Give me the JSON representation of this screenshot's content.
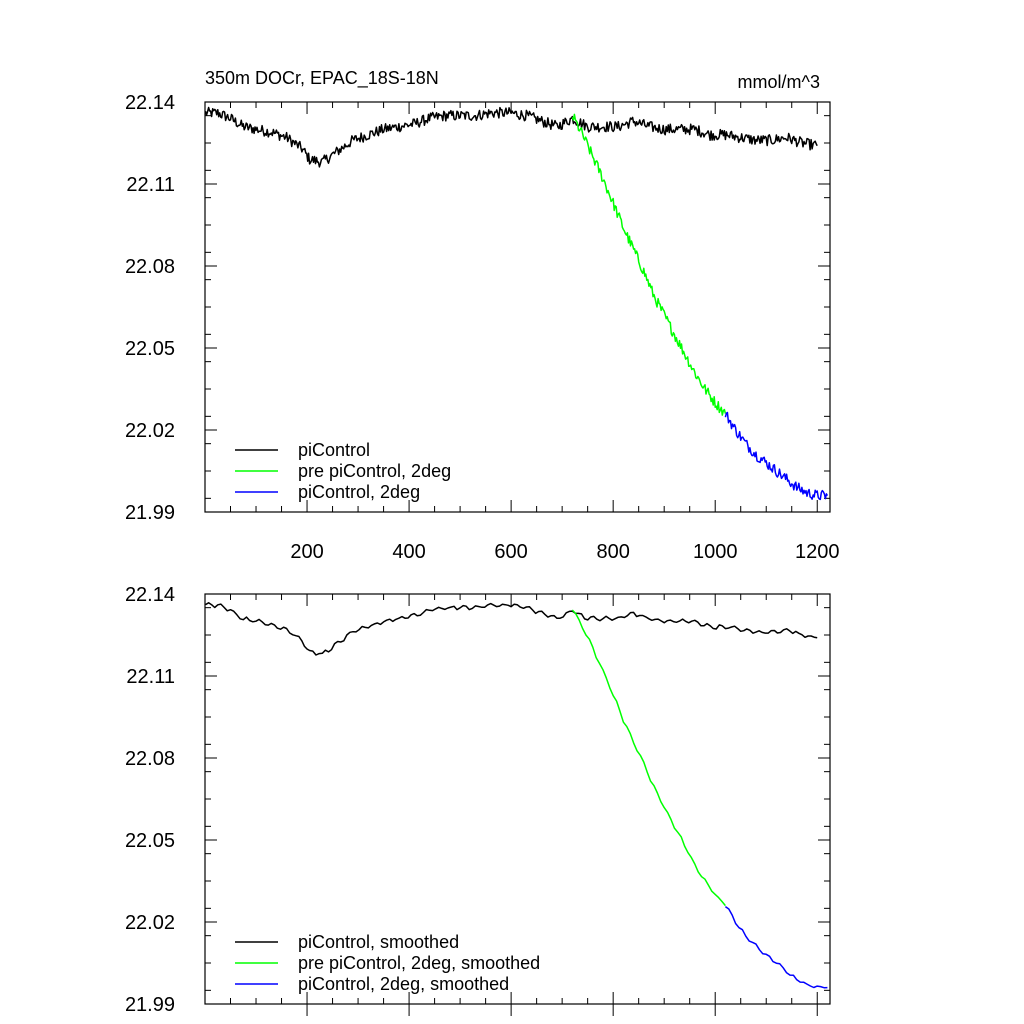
{
  "chart_data": [
    {
      "type": "line",
      "title_left": "350m DOCr, EPAC_18S-18N",
      "title_right": "mmol/m^3",
      "xlim": [
        0,
        1225
      ],
      "ylim": [
        21.99,
        22.14
      ],
      "xticks": [
        200,
        400,
        600,
        800,
        1000,
        1200
      ],
      "yticks": [
        22.14,
        22.11,
        22.08,
        22.05,
        22.02,
        21.99
      ],
      "ytick_labels": [
        "22.14",
        "22.11",
        "22.08",
        "22.05",
        "22.02",
        "21.99"
      ],
      "xtick_labels": [
        "200",
        "400",
        "600",
        "800",
        "1000",
        "1200"
      ],
      "show_x_labels": true,
      "legend_position": "bottom-left",
      "smoothed": false,
      "series": [
        {
          "name": "piControl",
          "color": "#000000",
          "x": [
            1,
            25,
            50,
            75,
            100,
            130,
            160,
            190,
            205,
            230,
            260,
            290,
            320,
            350,
            380,
            410,
            440,
            470,
            500,
            530,
            560,
            600,
            630,
            660,
            690,
            720,
            750,
            780,
            810,
            840,
            870,
            900,
            930,
            960,
            990,
            1020,
            1050,
            1080,
            1110,
            1140,
            1170,
            1200
          ],
          "y": [
            22.136,
            22.136,
            22.134,
            22.131,
            22.13,
            22.129,
            22.127,
            22.123,
            22.119,
            22.118,
            22.122,
            22.126,
            22.128,
            22.13,
            22.131,
            22.132,
            22.134,
            22.135,
            22.135,
            22.135,
            22.136,
            22.136,
            22.135,
            22.133,
            22.131,
            22.134,
            22.131,
            22.131,
            22.131,
            22.133,
            22.131,
            22.13,
            22.13,
            22.13,
            22.128,
            22.128,
            22.127,
            22.126,
            22.126,
            22.127,
            22.125,
            22.124
          ]
        },
        {
          "name": "pre piControl, 2deg",
          "color": "#00ff00",
          "x": [
            720,
            740,
            760,
            780,
            800,
            820,
            840,
            860,
            880,
            900,
            920,
            940,
            960,
            980,
            1000,
            1020
          ],
          "y": [
            22.135,
            22.128,
            22.12,
            22.112,
            22.103,
            22.094,
            22.086,
            22.078,
            22.069,
            22.062,
            22.055,
            22.048,
            22.041,
            22.035,
            22.03,
            22.026
          ]
        },
        {
          "name": "piControl, 2deg",
          "color": "#0000ff",
          "x": [
            1020,
            1040,
            1060,
            1080,
            1100,
            1120,
            1140,
            1160,
            1180,
            1200,
            1220
          ],
          "y": [
            22.026,
            22.02,
            22.015,
            22.011,
            22.008,
            22.005,
            22.002,
            21.999,
            21.997,
            21.996,
            21.996
          ]
        }
      ]
    },
    {
      "type": "line",
      "xlim": [
        0,
        1225
      ],
      "ylim": [
        21.99,
        22.14
      ],
      "xticks": [
        200,
        400,
        600,
        800,
        1000,
        1200
      ],
      "yticks": [
        22.14,
        22.11,
        22.08,
        22.05,
        22.02,
        21.99
      ],
      "ytick_labels": [
        "22.14",
        "22.11",
        "22.08",
        "22.05",
        "22.02",
        "21.99"
      ],
      "show_x_labels": false,
      "legend_position": "bottom-left",
      "smoothed": true,
      "series": [
        {
          "name": "piControl, smoothed",
          "color": "#000000",
          "x": [
            1,
            25,
            50,
            75,
            100,
            130,
            160,
            190,
            205,
            230,
            260,
            290,
            320,
            350,
            380,
            410,
            440,
            470,
            500,
            530,
            560,
            600,
            630,
            660,
            690,
            720,
            750,
            780,
            810,
            840,
            870,
            900,
            930,
            960,
            990,
            1020,
            1050,
            1080,
            1110,
            1140,
            1170,
            1200
          ],
          "y": [
            22.136,
            22.136,
            22.134,
            22.131,
            22.13,
            22.129,
            22.127,
            22.123,
            22.119,
            22.118,
            22.122,
            22.126,
            22.128,
            22.13,
            22.131,
            22.132,
            22.134,
            22.135,
            22.135,
            22.135,
            22.136,
            22.136,
            22.135,
            22.133,
            22.131,
            22.134,
            22.131,
            22.131,
            22.131,
            22.133,
            22.131,
            22.13,
            22.13,
            22.13,
            22.128,
            22.128,
            22.127,
            22.126,
            22.126,
            22.127,
            22.125,
            22.124
          ]
        },
        {
          "name": "pre piControl, 2deg, smoothed",
          "color": "#00ff00",
          "x": [
            720,
            740,
            760,
            780,
            800,
            820,
            840,
            860,
            880,
            900,
            920,
            940,
            960,
            980,
            1000,
            1020
          ],
          "y": [
            22.135,
            22.128,
            22.12,
            22.112,
            22.103,
            22.094,
            22.086,
            22.078,
            22.069,
            22.062,
            22.055,
            22.048,
            22.041,
            22.035,
            22.03,
            22.026
          ]
        },
        {
          "name": "piControl, 2deg, smoothed",
          "color": "#0000ff",
          "x": [
            1020,
            1040,
            1060,
            1080,
            1100,
            1120,
            1140,
            1160,
            1180,
            1200,
            1220
          ],
          "y": [
            22.026,
            22.02,
            22.015,
            22.011,
            22.008,
            22.005,
            22.002,
            21.999,
            21.997,
            21.996,
            21.996
          ]
        }
      ]
    }
  ]
}
